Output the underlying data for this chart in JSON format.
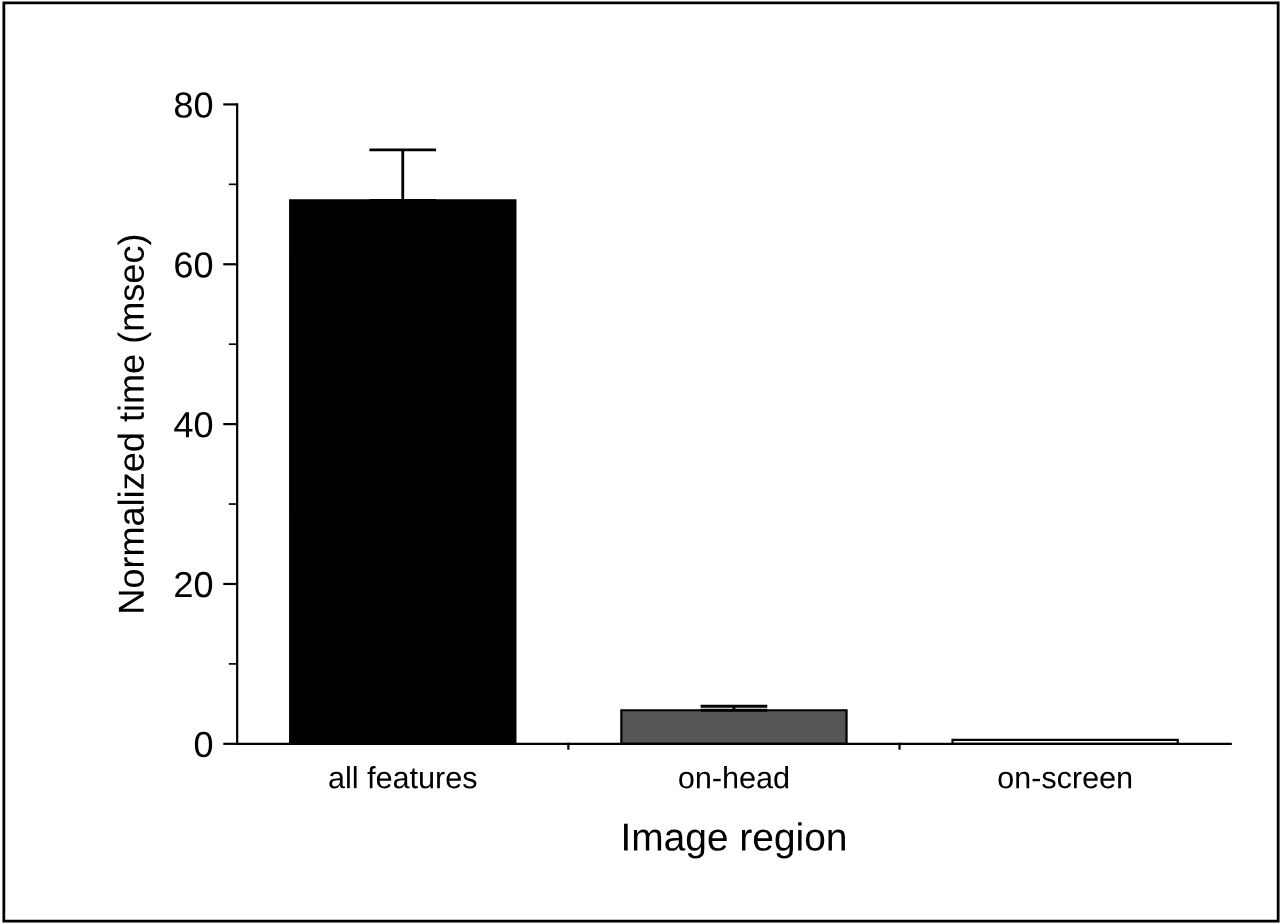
{
  "chart_data": {
    "type": "bar",
    "xlabel": "Image region",
    "ylabel": "Normalized time (msec)",
    "categories": [
      "all features",
      "on-head",
      "on-screen"
    ],
    "values": [
      68,
      4.2,
      0.5
    ],
    "colors": [
      "#000000",
      "#555555",
      "#ffffff"
    ],
    "errors": [
      [
        68,
        74.3
      ],
      [
        4.2,
        4.7
      ],
      null
    ],
    "ylim": [
      0,
      80
    ],
    "yticks": [
      0,
      20,
      40,
      60,
      80
    ],
    "grid": false
  }
}
